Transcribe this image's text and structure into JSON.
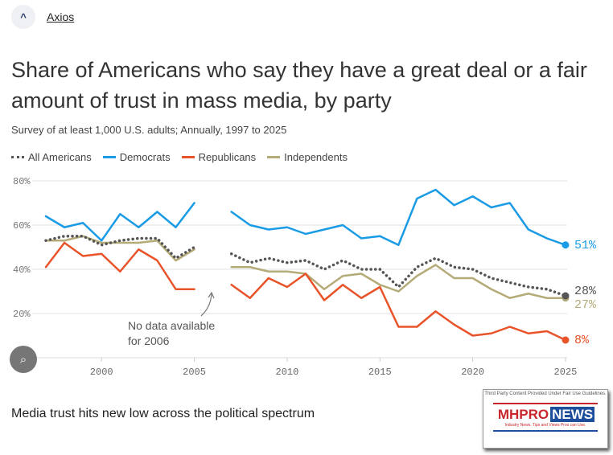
{
  "source": {
    "name": "Axios",
    "logo_letter": "^"
  },
  "title": "Share of Americans who say they have a great deal or a fair amount of trust in mass media, by party",
  "subtitle": "Survey of at least 1,000 U.S. adults; Annually, 1997 to 2025",
  "caption": "Media trust hits new low across the political spectrum",
  "watermark": {
    "top": "Third Party Content Provided Under Fair Use Guidelines.",
    "brand_a": "MHPRO",
    "brand_b": "NEWS",
    ".com": ".com",
    "tagline": "Industry News, Tips and Views Pros can Use."
  },
  "chart_data": {
    "type": "line",
    "title": "Share of Americans who say they have a great deal or a fair amount of trust in mass media, by party",
    "xlim": [
      1997,
      2025
    ],
    "ylim": [
      0,
      80
    ],
    "x_ticks": [
      2000,
      2005,
      2010,
      2015,
      2020,
      2025
    ],
    "y_ticks": [
      {
        "v": 20,
        "label": "20%"
      },
      {
        "v": 40,
        "label": "40%"
      },
      {
        "v": 60,
        "label": "60%"
      },
      {
        "v": 80,
        "label": "80%"
      }
    ],
    "grid": true,
    "legend": "top-left",
    "x": [
      1997,
      1998,
      1999,
      2000,
      2001,
      2002,
      2003,
      2004,
      2005,
      2006,
      2007,
      2008,
      2009,
      2010,
      2011,
      2012,
      2013,
      2014,
      2015,
      2016,
      2017,
      2018,
      2019,
      2020,
      2021,
      2022,
      2023,
      2024,
      2025
    ],
    "series": [
      {
        "name": "All Americans",
        "color": "#555555",
        "dotted": true,
        "end_label": "28%",
        "values": [
          53,
          55,
          55,
          51,
          53,
          54,
          54,
          45,
          50,
          null,
          47,
          43,
          45,
          43,
          44,
          40,
          44,
          40,
          40,
          32,
          41,
          45,
          41,
          40,
          36,
          34,
          32,
          31,
          28
        ]
      },
      {
        "name": "Democrats",
        "color": "#1a9be6",
        "end_label": "51%",
        "values": [
          64,
          59,
          61,
          53,
          65,
          59,
          66,
          59,
          70,
          null,
          66,
          60,
          58,
          59,
          56,
          58,
          60,
          54,
          55,
          51,
          72,
          76,
          69,
          73,
          68,
          70,
          58,
          54,
          51
        ]
      },
      {
        "name": "Republicans",
        "color": "#e8532a",
        "end_label": "8%",
        "values": [
          41,
          52,
          46,
          47,
          39,
          49,
          44,
          31,
          31,
          null,
          33,
          27,
          36,
          32,
          38,
          26,
          33,
          27,
          32,
          14,
          14,
          21,
          15,
          10,
          11,
          14,
          11,
          12,
          8
        ]
      },
      {
        "name": "Independents",
        "color": "#b5ab78",
        "end_label": "27%",
        "values": [
          53,
          53,
          55,
          52,
          52,
          52,
          53,
          44,
          49,
          null,
          41,
          41,
          39,
          39,
          38,
          31,
          37,
          38,
          33,
          30,
          37,
          42,
          36,
          36,
          31,
          27,
          29,
          27,
          27
        ]
      }
    ],
    "annotation": {
      "year": 2006,
      "text": [
        "No data available",
        "for 2006"
      ]
    }
  }
}
